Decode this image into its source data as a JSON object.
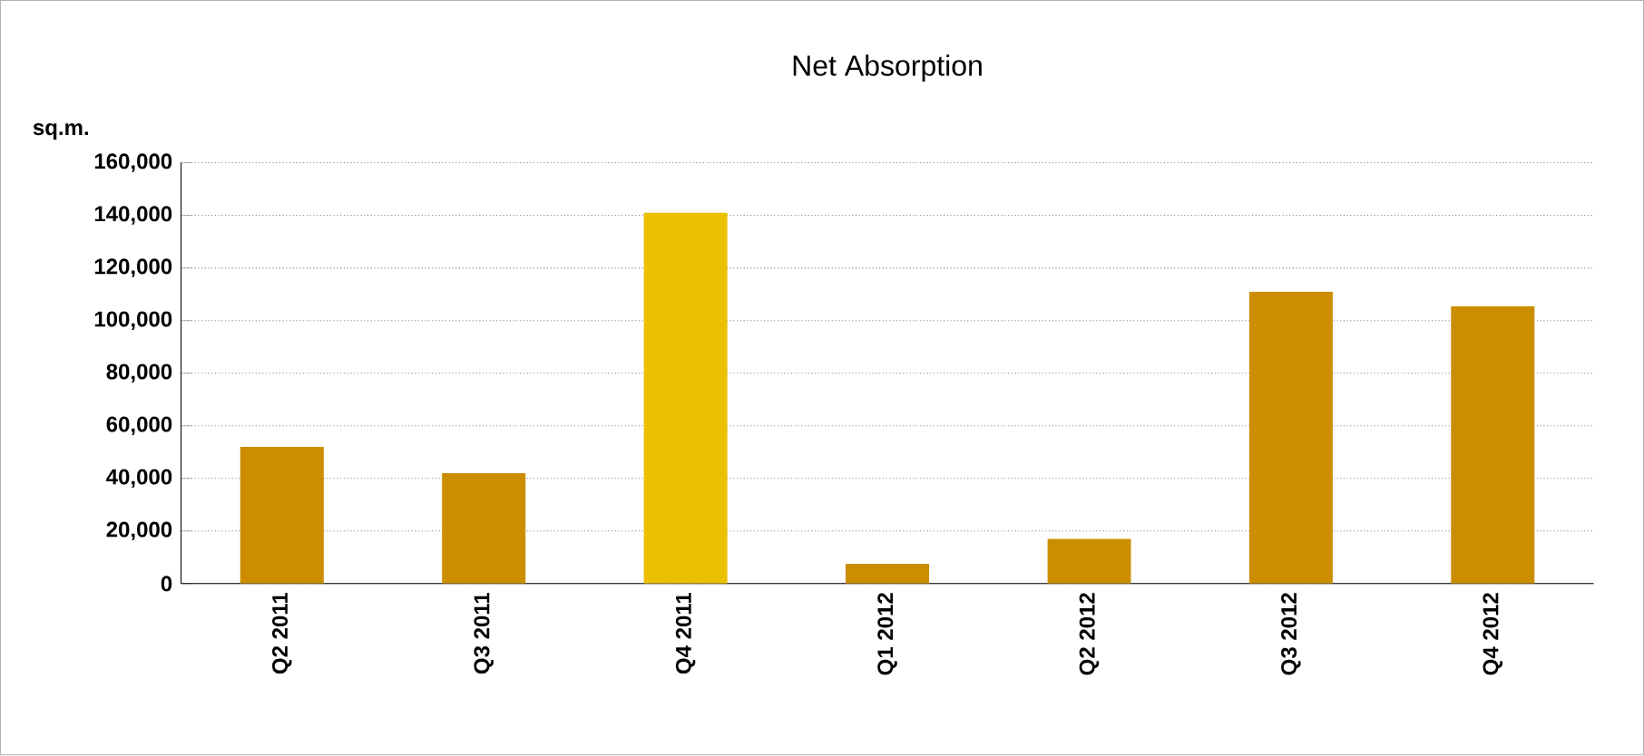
{
  "chart_data": {
    "type": "bar",
    "title": "Net Absorption",
    "ylabel": "sq.m.",
    "categories": [
      "Q2 2011",
      "Q3 2011",
      "Q4 2011",
      "Q1 2012",
      "Q2 2012",
      "Q3 2012",
      "Q4 2012"
    ],
    "values": [
      52000,
      42000,
      141000,
      7500,
      17000,
      111000,
      105500
    ],
    "colors": [
      "#cc8e00",
      "#cc8e00",
      "#ecc000",
      "#cc8e00",
      "#cc8e00",
      "#cc8e00",
      "#cc8e00"
    ],
    "ylim": [
      0,
      160000
    ],
    "yticks": [
      {
        "value": 0,
        "label": "0"
      },
      {
        "value": 20000,
        "label": "20,000"
      },
      {
        "value": 40000,
        "label": "40,000"
      },
      {
        "value": 60000,
        "label": "60,000"
      },
      {
        "value": 80000,
        "label": "80,000"
      },
      {
        "value": 100000,
        "label": "100,000"
      },
      {
        "value": 120000,
        "label": "120,000"
      },
      {
        "value": 140000,
        "label": "140,000"
      },
      {
        "value": 160000,
        "label": "160,000"
      }
    ],
    "grid": "y"
  }
}
